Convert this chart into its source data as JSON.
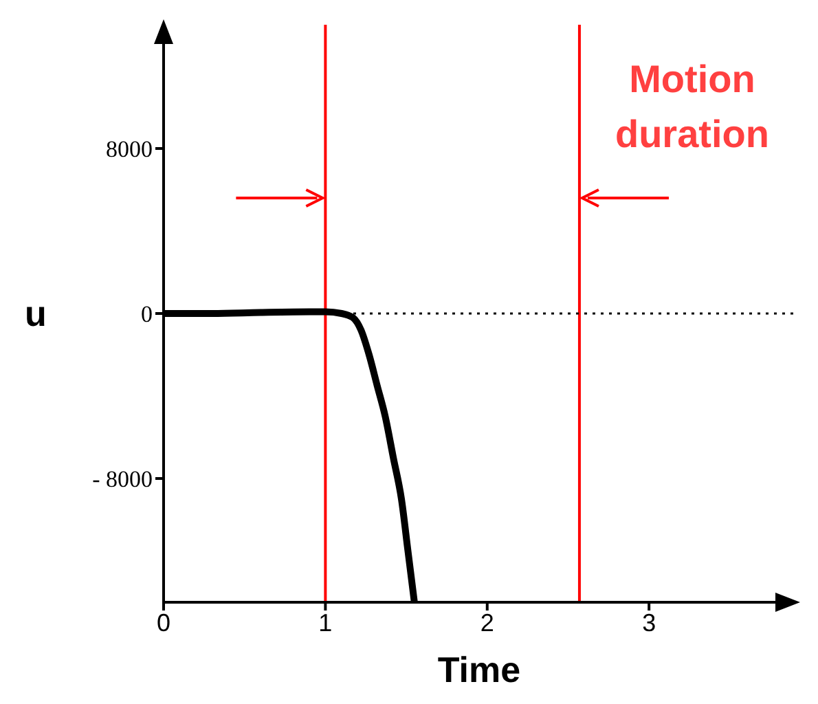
{
  "chart_data": {
    "type": "line",
    "xlabel": "Time",
    "ylabel": "u",
    "annotations": [
      "Motion duration"
    ],
    "x": [
      0,
      0.3,
      0.6,
      0.9,
      1.0,
      1.1,
      1.17,
      1.22,
      1.27,
      1.32,
      1.37,
      1.42,
      1.47,
      1.51,
      1.55
    ],
    "series": [
      {
        "color": "#000000",
        "values": [
          0,
          0,
          50,
          80,
          80,
          0,
          -200,
          -800,
          -2000,
          -3500,
          -5000,
          -7000,
          -9000,
          -11500,
          -14000
        ]
      }
    ],
    "xlim": [
      0,
      3.9
    ],
    "xticks": [
      0,
      1,
      2,
      3
    ],
    "ylim": [
      -14000,
      14000
    ],
    "yticks": [
      8000,
      0,
      {
        "value": -8000,
        "label": "- 8000"
      }
    ],
    "ref_lines": [
      {
        "axis": "x",
        "value": 1,
        "color": "#ff0000"
      },
      {
        "axis": "x",
        "value": 2.57,
        "color": "#ff0000"
      },
      {
        "axis": "y",
        "value": 0,
        "color": "#000000",
        "line_style": "dotted"
      }
    ],
    "marker": "none",
    "line_style": "solid"
  }
}
